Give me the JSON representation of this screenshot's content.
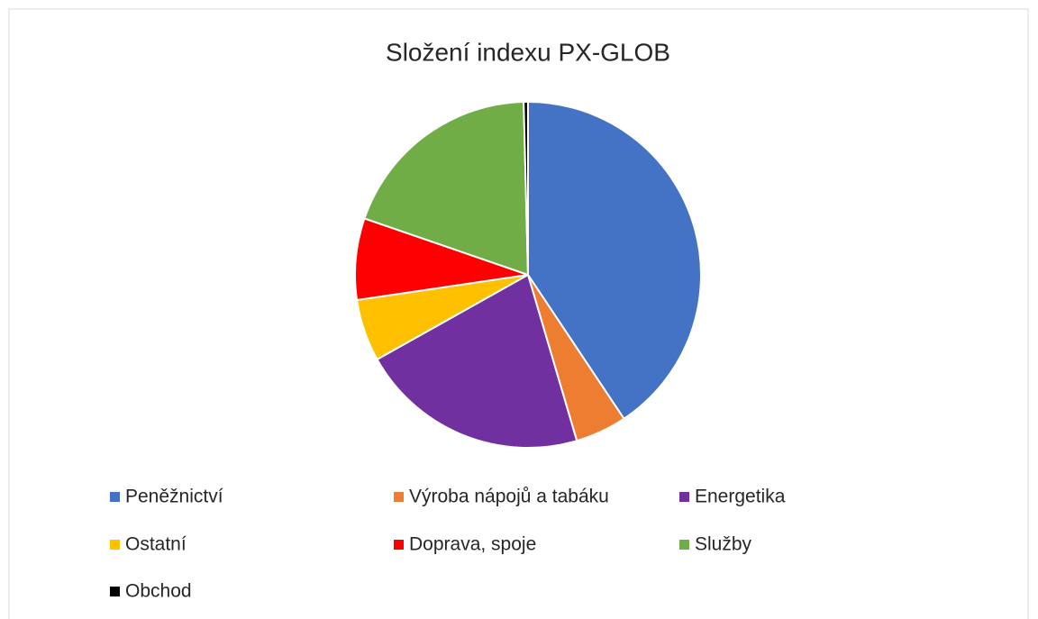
{
  "chart_data": {
    "type": "pie",
    "title": "Složení indexu PX-GLOB",
    "categories": [
      "Peněžnictví",
      "Výroba nápojů a tabáku",
      "Energetika",
      "Ostatní",
      "Doprava, spoje",
      "Služby",
      "Obchod"
    ],
    "values": [
      40.6,
      4.8,
      21.4,
      5.8,
      7.6,
      19.3,
      0.4
    ],
    "colors": [
      "#4472c4",
      "#ed7d31",
      "#7030a0",
      "#ffc000",
      "#ff0000",
      "#70ad47",
      "#000000"
    ]
  }
}
